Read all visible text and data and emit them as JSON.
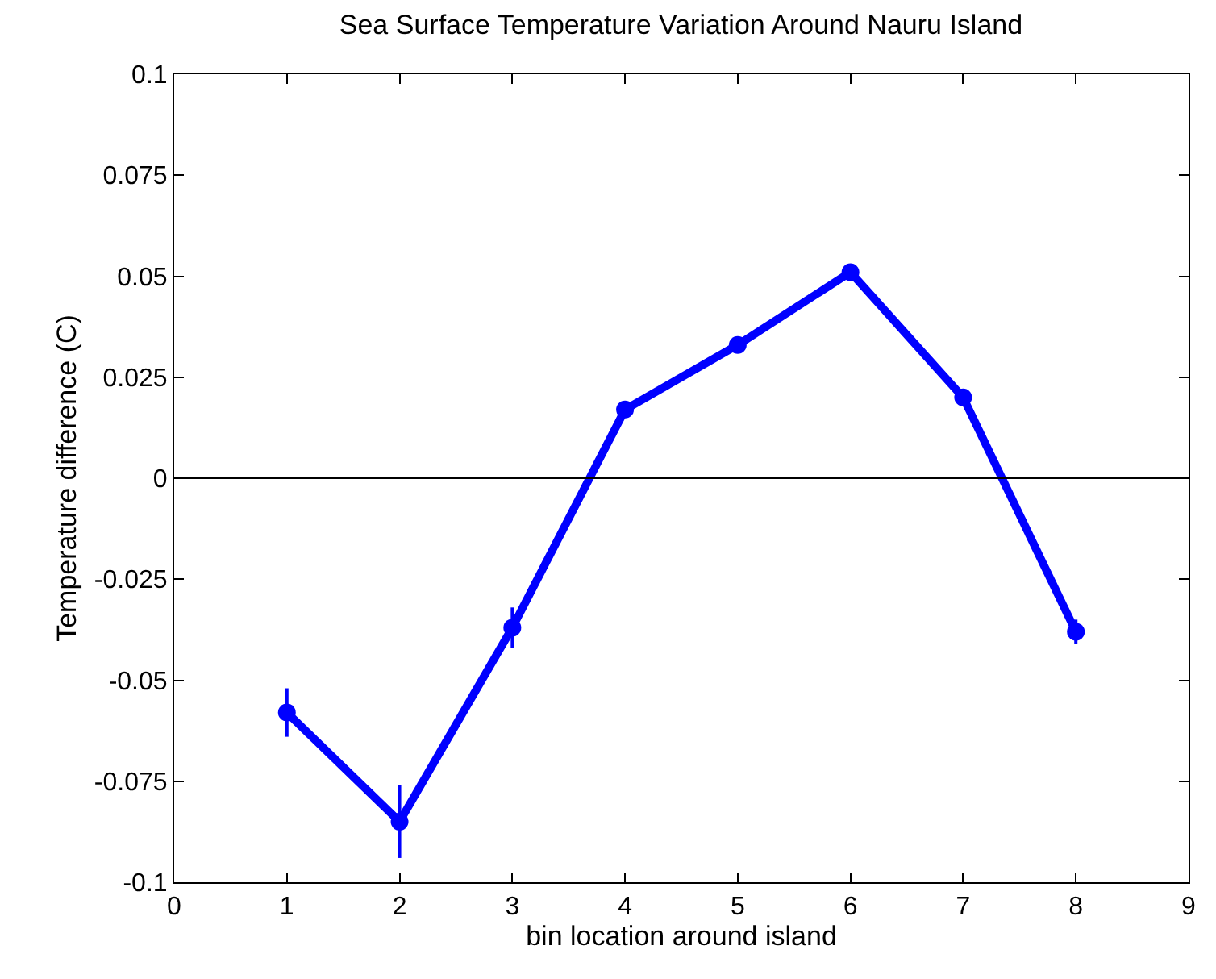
{
  "chart_data": {
    "type": "line",
    "title": "Sea Surface Temperature Variation Around Nauru Island",
    "xlabel": "bin location around island",
    "ylabel": "Temperature difference (C)",
    "x": [
      1,
      2,
      3,
      4,
      5,
      6,
      7,
      8
    ],
    "series": [
      {
        "color": "#0000ff",
        "values": [
          -0.058,
          -0.085,
          -0.037,
          0.017,
          0.033,
          0.051,
          0.02,
          -0.038
        ],
        "errors": [
          0.006,
          0.009,
          0.005,
          0.002,
          0.002,
          0.002,
          0.002,
          0.003
        ]
      }
    ],
    "xlim": [
      0,
      9
    ],
    "xticks": [
      0,
      1,
      2,
      3,
      4,
      5,
      6,
      7,
      8,
      9
    ],
    "ylim": [
      -0.1,
      0.1
    ],
    "yticks": [
      -0.1,
      -0.075,
      -0.05,
      -0.025,
      0,
      0.025,
      0.05,
      0.075,
      0.1
    ],
    "ref_lines": [
      {
        "axis": "y",
        "value": 0,
        "color": "#000000"
      }
    ],
    "marker": "circle",
    "line_style": "solid",
    "legend": false
  }
}
